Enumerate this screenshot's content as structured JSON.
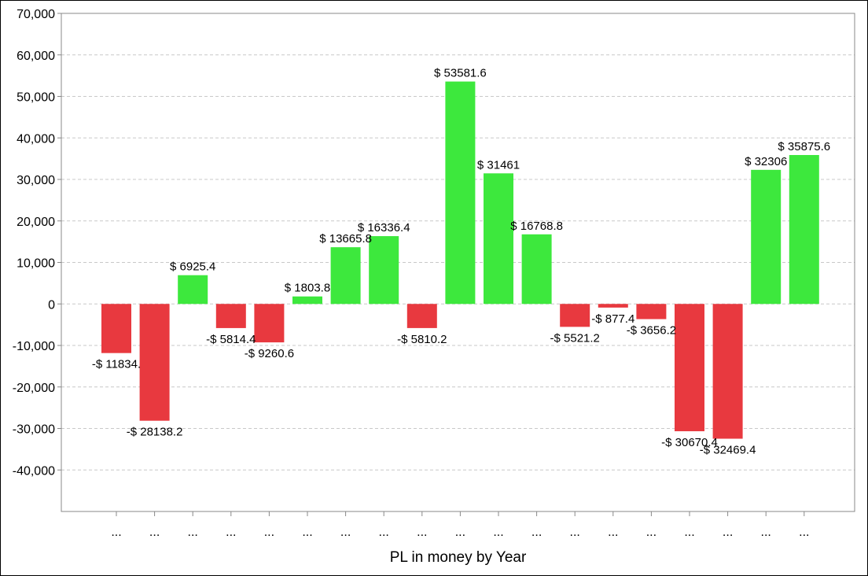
{
  "chart_data": {
    "type": "bar",
    "title": "",
    "xlabel": "PL in money by Year",
    "ylabel": "",
    "ylim": [
      -50000,
      70000
    ],
    "yticks": [
      70000,
      60000,
      50000,
      40000,
      30000,
      20000,
      10000,
      0,
      -10000,
      -20000,
      -30000,
      -40000
    ],
    "ytick_labels": [
      "70,000",
      "60,000",
      "50,000",
      "40,000",
      "30,000",
      "20,000",
      "10,000",
      "0",
      "-10,000",
      "-20,000",
      "-30,000",
      "-40,000"
    ],
    "grid": "horizontal-dashed",
    "categories": [
      "...",
      "...",
      "...",
      "...",
      "...",
      "...",
      "...",
      "...",
      "...",
      "...",
      "...",
      "...",
      "...",
      "...",
      "...",
      "...",
      "...",
      "...",
      "..."
    ],
    "values": [
      -11834,
      -28138.2,
      6925.4,
      -5814.4,
      -9260.6,
      1803.8,
      13665.8,
      16336.4,
      -5810.2,
      53581.6,
      31461,
      16768.8,
      -5521.2,
      -877.4,
      -3656.2,
      -30670.4,
      -32469.4,
      32306,
      35875.6
    ],
    "data_labels": [
      "-$ 11834.",
      "-$ 28138.2",
      "$ 6925.4",
      "-$ 5814.4",
      "-$ 9260.6",
      "$ 1803.8",
      "$ 13665.8",
      "$ 16336.4",
      "-$ 5810.2",
      "$ 53581.6",
      "$ 31461",
      "$ 16768.8",
      "-$ 5521.2",
      "-$ 877.4",
      "-$ 3656.2",
      "-$ 30670.4",
      "-$ 32469.4",
      "$ 32306",
      "$ 35875.6"
    ],
    "colors": {
      "positive": "#3de83d",
      "negative": "#e8393f",
      "grid": "#c8c8c8",
      "axis": "#888888"
    }
  }
}
